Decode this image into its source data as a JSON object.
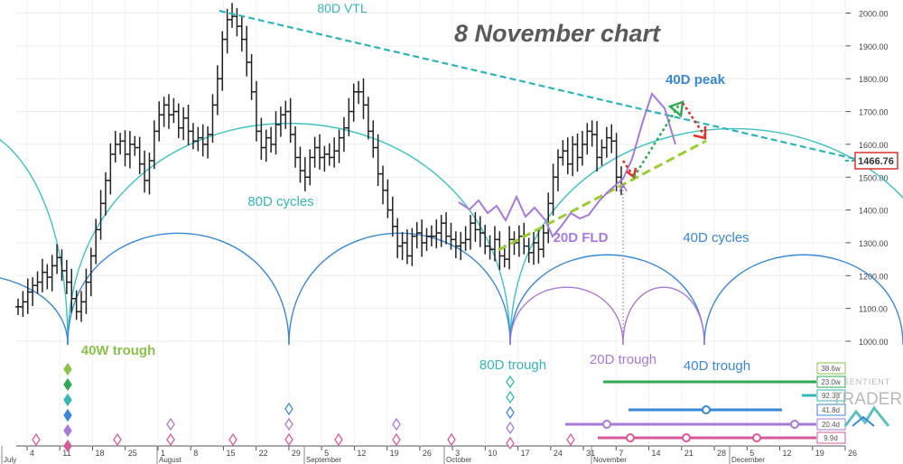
{
  "title": "8 November chart",
  "price_marker": "1466.76",
  "colors": {
    "bars": "#222222",
    "vtl": "#2bb5b8",
    "cycle80": "#3fc1c1",
    "cycle40": "#3a87d6",
    "cycle20": "#a77ad8",
    "fld": "#a77ad8",
    "green_line": "#9acd32",
    "label_green": "#8bc34a",
    "label_teal": "#36b6b6",
    "label_blue": "#3a87d6",
    "label_purple": "#a77ad8",
    "price_box": "#d8342d"
  },
  "labels": {
    "vtl": "80D VTL",
    "peak": "40D peak",
    "cycles80": "80D cycles",
    "fld": "20D FLD",
    "cycles40": "40D cycles",
    "trough40w": "40W trough",
    "trough80": "80D trough",
    "trough20": "20D trough",
    "trough40": "40D trough"
  },
  "brand": {
    "line1": "SENTIENT",
    "line2": "TRADER"
  },
  "chart_data": {
    "type": "bar",
    "title": "8 November chart",
    "y_axis": {
      "ticks": [
        "1000.00",
        "1100.00",
        "1200.00",
        "1300.00",
        "1400.00",
        "1500.00",
        "1600.00",
        "1700.00",
        "1800.00",
        "1900.00",
        "2000.00"
      ],
      "range": [
        940,
        2040
      ]
    },
    "x_ticks": [
      "4",
      "11",
      "18",
      "25",
      "1",
      "8",
      "15",
      "22",
      "29",
      "5",
      "12",
      "19",
      "26",
      "3",
      "10",
      "17",
      "24",
      "31",
      "7",
      "14",
      "21",
      "28",
      "5",
      "12",
      "19",
      "26"
    ],
    "months": [
      "July",
      "August",
      "September",
      "October",
      "November",
      "December"
    ],
    "ohlc_closes": [
      1105,
      1120,
      1150,
      1170,
      1180,
      1210,
      1195,
      1230,
      1255,
      1215,
      1180,
      1130,
      1090,
      1120,
      1180,
      1260,
      1340,
      1420,
      1490,
      1570,
      1600,
      1610,
      1570,
      1600,
      1590,
      1540,
      1490,
      1550,
      1640,
      1690,
      1720,
      1690,
      1700,
      1650,
      1680,
      1640,
      1610,
      1620,
      1600,
      1630,
      1720,
      1800,
      1920,
      1980,
      1990,
      1960,
      1920,
      1850,
      1760,
      1640,
      1590,
      1620,
      1600,
      1660,
      1690,
      1700,
      1630,
      1560,
      1520,
      1500,
      1560,
      1590,
      1560,
      1570,
      1560,
      1580,
      1620,
      1650,
      1700,
      1760,
      1760,
      1720,
      1640,
      1590,
      1510,
      1460,
      1400,
      1350,
      1290,
      1300,
      1260,
      1320,
      1330,
      1300,
      1320,
      1320,
      1330,
      1360,
      1320,
      1310,
      1290,
      1300,
      1310,
      1360,
      1340,
      1330,
      1290,
      1280,
      1310,
      1260,
      1250,
      1310,
      1300,
      1320,
      1290,
      1270,
      1300,
      1280,
      1330,
      1420,
      1500,
      1560,
      1580,
      1540,
      1600,
      1560,
      1600,
      1640,
      1630,
      1560,
      1590,
      1620,
      1610,
      1500,
      1470
    ],
    "vtl": {
      "start_close_index": 44,
      "end_point_price": 1466.76
    },
    "cycle_trough_indices": {
      "40W": 11,
      "80D": 98,
      "20D": 120,
      "40D": 138
    },
    "cycle_lengths": {
      "20D": "20.4d",
      "40D": "41.8d",
      "80D": "92.3d",
      "weekly_1": "23.0w",
      "weekly_2": "38.6w",
      "short": "9.9d"
    },
    "legend": [
      {
        "label": "38.6w",
        "color": "#8bc34a"
      },
      {
        "label": "23.0w",
        "color": "#2eaa55"
      },
      {
        "label": "92.3d",
        "color": "#36b6b6"
      },
      {
        "label": "41.8d",
        "color": "#3a87d6"
      },
      {
        "label": "20.4d",
        "color": "#a77ad8"
      },
      {
        "label": "9.9d",
        "color": "#d65a9a"
      }
    ]
  }
}
